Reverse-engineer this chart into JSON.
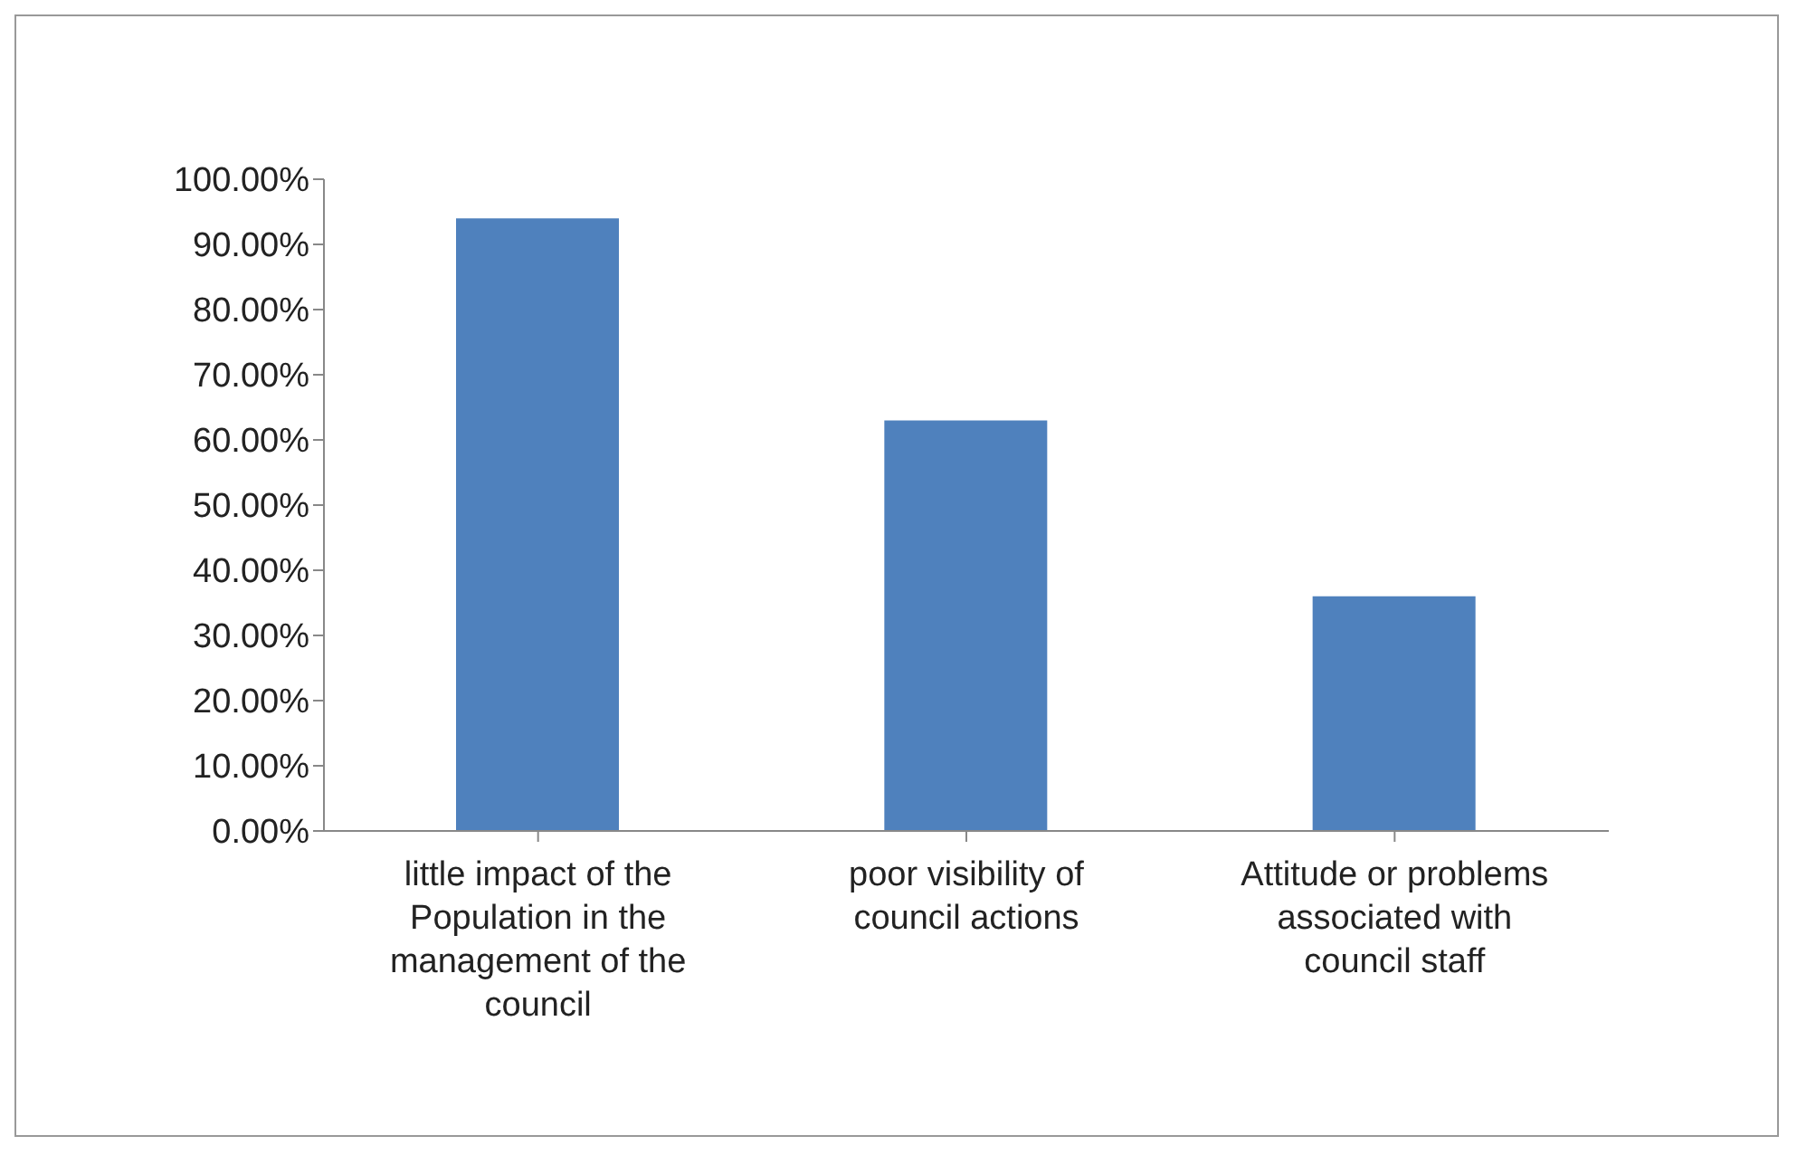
{
  "chart_data": {
    "type": "bar",
    "categories": [
      "little impact of the Population in the management of the council",
      "poor visibility of council actions",
      "Attitude or problems associated with council staff"
    ],
    "values": [
      94,
      63,
      36
    ],
    "color": "#4f81bd",
    "ylim": [
      0,
      100
    ],
    "yticks": [
      {
        "value": 0,
        "label": "0.00%"
      },
      {
        "value": 10,
        "label": "10.00%"
      },
      {
        "value": 20,
        "label": "20.00%"
      },
      {
        "value": 30,
        "label": "30.00%"
      },
      {
        "value": 40,
        "label": "40.00%"
      },
      {
        "value": 50,
        "label": "50.00%"
      },
      {
        "value": 60,
        "label": "60.00%"
      },
      {
        "value": 70,
        "label": "70.00%"
      },
      {
        "value": 80,
        "label": "80.00%"
      },
      {
        "value": 90,
        "label": "90.00%"
      },
      {
        "value": 100,
        "label": "100.00%"
      }
    ],
    "grid": false,
    "legend": false
  }
}
